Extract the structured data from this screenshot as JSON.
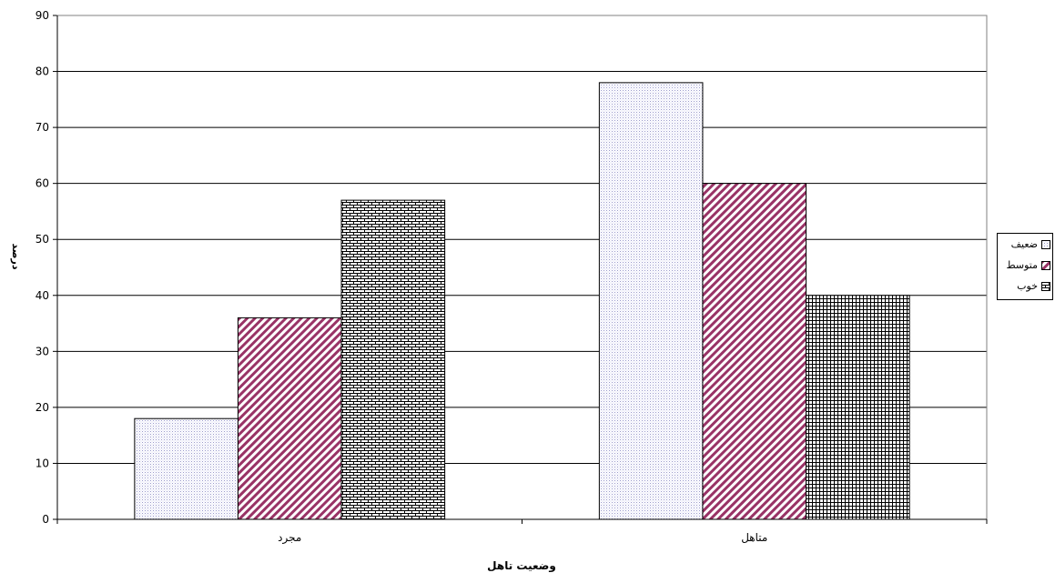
{
  "chart_data": {
    "type": "bar",
    "categories": [
      "مجرد",
      "متاهل"
    ],
    "series": [
      {
        "name": "ضعيف",
        "values": [
          18,
          78
        ],
        "pattern": "dots",
        "color": "#9999cc"
      },
      {
        "name": "متوسط",
        "values": [
          36,
          60
        ],
        "pattern": "diagonal",
        "color": "#993366"
      },
      {
        "name": "خوب",
        "values": [
          57,
          40
        ],
        "pattern": "brick",
        "color": "#000000"
      }
    ],
    "title": "",
    "xlabel": "وضعيت تاهل",
    "ylabel": "درصد",
    "ylim": [
      0,
      90
    ],
    "yticks": [
      "0",
      "10",
      "20",
      "30",
      "40",
      "50",
      "60",
      "70",
      "80",
      "90"
    ],
    "grid": true,
    "legend": "right"
  }
}
